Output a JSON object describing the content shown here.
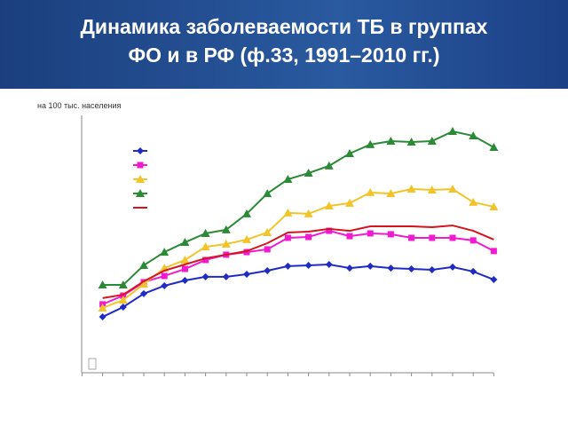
{
  "header": {
    "title_line1": "Динамика заболеваемости ТБ в группах",
    "title_line2": "ФО и в РФ (ф.33, 1991–2010 гг.)"
  },
  "chart_data": {
    "type": "line",
    "y_label": "на 100 тыс. населения",
    "categories": [
      null,
      null,
      null,
      null,
      null,
      null,
      null,
      null,
      null,
      null,
      null,
      null,
      null,
      null,
      null,
      null,
      null,
      null,
      null,
      null
    ],
    "ylim": [
      0,
      120
    ],
    "series": [
      {
        "color": "#1f2bc4",
        "marker": "diamond",
        "values": [
          25.4,
          30,
          36.3,
          40,
          42.5,
          44.2,
          44.2,
          45.4,
          47.1,
          49.2,
          49.6,
          50,
          48.3,
          49.2,
          48.3,
          47.9,
          47.5,
          48.8,
          46.7,
          42.9
        ]
      },
      {
        "color": "#f01ad0",
        "marker": "square",
        "values": [
          31.3,
          35.4,
          41.7,
          44.6,
          47.9,
          52.1,
          54.6,
          55.8,
          57.1,
          62.5,
          62.9,
          65.8,
          63.3,
          64.6,
          64.2,
          62.5,
          62.5,
          62.5,
          61.3,
          56.3
        ]
      },
      {
        "color": "#f2c42a",
        "marker": "triangle",
        "values": [
          29.6,
          33.3,
          40.8,
          48.3,
          52.1,
          58.3,
          59.6,
          61.7,
          65,
          74.2,
          73.8,
          77.5,
          78.8,
          83.8,
          83.3,
          85.4,
          85,
          85.4,
          79.2,
          77.1
        ]
      },
      {
        "color": "#2a8a35",
        "marker": "triangle",
        "values": [
          40.4,
          40.4,
          49.6,
          55.8,
          60.4,
          64.6,
          66.3,
          73.8,
          83.3,
          90,
          92.9,
          96.3,
          102.1,
          106.3,
          107.9,
          107.5,
          107.9,
          112.5,
          110.4,
          105
        ]
      },
      {
        "color": "#d4141e",
        "marker": "none",
        "values": [
          34.2,
          35.8,
          42.1,
          47.1,
          50,
          52.9,
          54.6,
          56.3,
          60,
          65,
          65.4,
          66.7,
          65.8,
          67.9,
          67.9,
          67.9,
          67.5,
          68.3,
          65.8,
          61.7
        ]
      }
    ]
  }
}
